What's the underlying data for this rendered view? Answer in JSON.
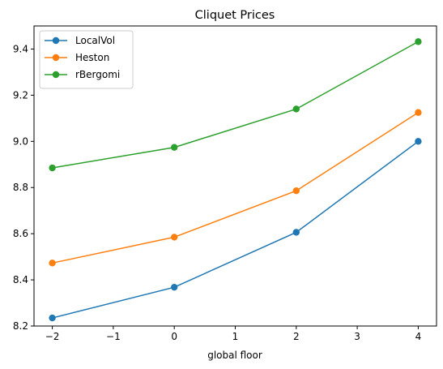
{
  "chart_data": {
    "type": "line",
    "title": "Cliquet Prices",
    "xlabel": "global floor",
    "ylabel": "",
    "x": [
      -2,
      0,
      2,
      4
    ],
    "xlim": [
      -2.3,
      4.3
    ],
    "ylim": [
      8.2,
      9.5
    ],
    "xticks": [
      -2,
      -1,
      0,
      1,
      2,
      3,
      4
    ],
    "yticks": [
      8.2,
      8.4,
      8.6,
      8.8,
      9.0,
      9.2,
      9.4
    ],
    "xtick_labels": [
      "−2",
      "−1",
      "0",
      "1",
      "2",
      "3",
      "4"
    ],
    "ytick_labels": [
      "8.2",
      "8.4",
      "8.6",
      "8.8",
      "9.0",
      "9.2",
      "9.4"
    ],
    "grid": false,
    "legend_position": "top-left",
    "series": [
      {
        "name": "LocalVol",
        "color": "#1f77b4",
        "values": [
          8.235,
          8.368,
          8.606,
          9.0
        ]
      },
      {
        "name": "Heston",
        "color": "#ff7f0e",
        "values": [
          8.473,
          8.585,
          8.786,
          9.125
        ]
      },
      {
        "name": "rBergomi",
        "color": "#2ca02c",
        "values": [
          8.885,
          8.974,
          9.14,
          9.432
        ]
      }
    ]
  }
}
